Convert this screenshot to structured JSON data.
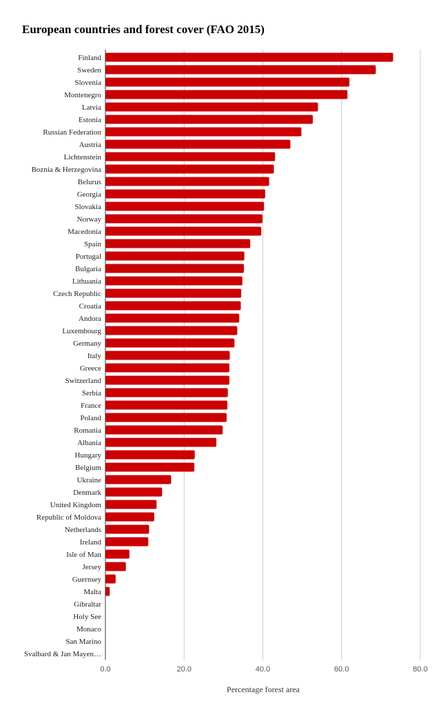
{
  "chart_data": {
    "type": "bar",
    "orientation": "horizontal",
    "title": "European countries and forest cover (FAO 2015)",
    "xlabel": "Percentage forest area",
    "ylabel": "",
    "xlim": [
      0,
      80
    ],
    "xticks": [
      "0.0",
      "20.0",
      "40.0",
      "60.0",
      "80.0"
    ],
    "grid": true,
    "legend": "none",
    "bar_color": "#cc0000",
    "categories": [
      "Finland",
      "Sweden",
      "Slovenia",
      "Montenegro",
      "Latvia",
      "Estonia",
      "Russian Federation",
      "Austria",
      "Lichtenstein",
      "Boznia & Herzegovina",
      "Belurus",
      "Georgia",
      "Slovakia",
      "Norway",
      "Macedonia",
      "Spain",
      "Portugal",
      "Bulgaria",
      "Lithuania",
      "Czech Republic",
      "Croatia",
      "Andora",
      "Luxembourg",
      "Germany",
      "Italy",
      "Greece",
      "Switzerland",
      "Serbia",
      "France",
      "Poland",
      "Romania",
      "Albania",
      "Hungary",
      "Belgium",
      "Ukraine",
      "Denmark",
      "United Kingdom",
      "Republic of Moldova",
      "Netherlands",
      "Ireland",
      "Isle of Man",
      "Jersey",
      "Guernsey",
      "Malta",
      "Gibraltar",
      "Holy See",
      "Monaco",
      "San Marino",
      "Svalbard & Jan Mayen…"
    ],
    "values": [
      73.1,
      68.7,
      62.0,
      61.5,
      54.0,
      52.7,
      49.8,
      47.0,
      43.1,
      42.8,
      41.6,
      40.6,
      40.3,
      39.9,
      39.6,
      36.8,
      35.3,
      35.2,
      34.8,
      34.5,
      34.4,
      34.0,
      33.5,
      32.8,
      31.6,
      31.5,
      31.5,
      31.1,
      31.0,
      30.8,
      29.8,
      28.2,
      22.7,
      22.6,
      16.7,
      14.4,
      13.0,
      12.4,
      11.1,
      10.9,
      6.1,
      5.2,
      2.6,
      1.1,
      0,
      0,
      0,
      0,
      0
    ]
  }
}
